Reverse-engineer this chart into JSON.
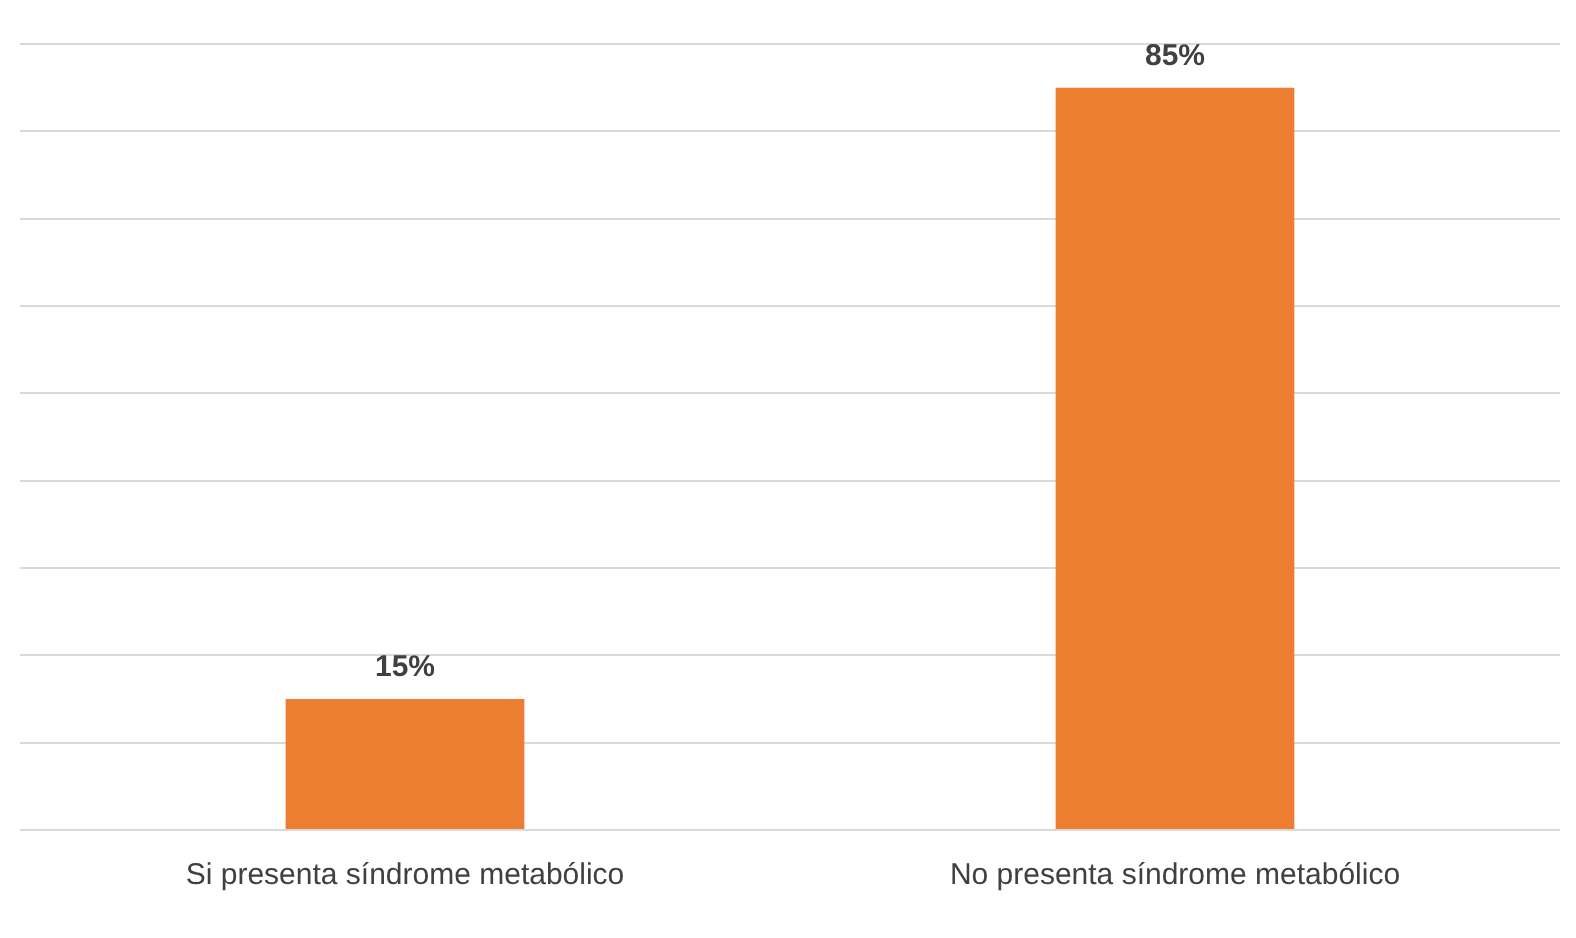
{
  "chart_data": {
    "type": "bar",
    "categories": [
      "Si presenta síndrome metabólico",
      "No presenta síndrome metabólico"
    ],
    "values": [
      15,
      85
    ],
    "value_labels": [
      "15%",
      "85%"
    ],
    "color": "#ed7d31",
    "ylim": [
      0,
      90
    ],
    "yticks": [
      {
        "value": 0,
        "label": null
      },
      {
        "value": 10,
        "label": null
      },
      {
        "value": 20,
        "label": null
      },
      {
        "value": 30,
        "label": null
      },
      {
        "value": 40,
        "label": null
      },
      {
        "value": 50,
        "label": null
      },
      {
        "value": 60,
        "label": null
      },
      {
        "value": 70,
        "label": null
      },
      {
        "value": 80,
        "label": null
      },
      {
        "value": 90,
        "label": null
      }
    ],
    "tick_labels": "x",
    "grid": "y"
  }
}
